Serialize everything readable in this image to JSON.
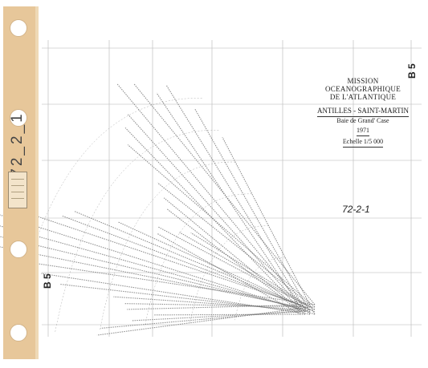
{
  "title_block": {
    "mission": "MISSION OCEANOGRAPHIQUE",
    "ocean": "DE L'ATLANTIQUE",
    "region": "ANTILLES - SAINT-MARTIN",
    "place": "Baie de Grand' Case",
    "year": "1971",
    "scale": "Echelle 1/5 000"
  },
  "sheet_id": "B 5",
  "map_code": "72-2-1",
  "tape_code": "72_2_1",
  "colors": {
    "tape": "#e7c79a",
    "soundings": "#6d6d6d",
    "grid": "#b5b5b5"
  }
}
